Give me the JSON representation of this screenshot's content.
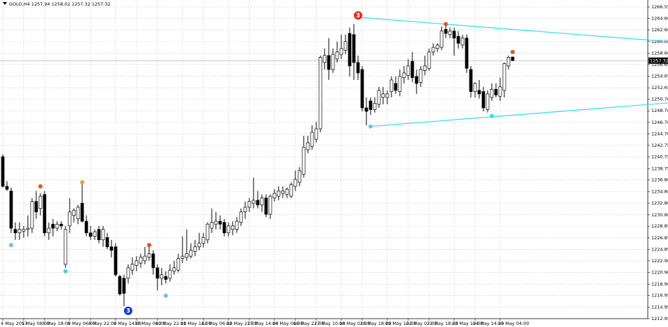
{
  "chart_data": {
    "type": "candlestick",
    "title": "GOLD,H4  1257.94 1258.02 1257.32 1257.32",
    "current_price": 1257.32,
    "ylim": [
      1212.95,
      1267.75
    ],
    "yticks": [
      1266.55,
      {
        "value": 1264.6,
        "label": "1264.60"
      },
      {
        "value": 1262.6,
        "label": "1262.60"
      },
      {
        "value": 1260.6,
        "label": "1260.60"
      },
      {
        "value": 1258.6,
        "label": "1258.60"
      },
      1256.65,
      1254.65,
      1252.65,
      {
        "value": 1250.7,
        "label": "1250.70"
      },
      {
        "value": 1248.7,
        "label": "1248.70"
      },
      {
        "value": 1246.7,
        "label": "1246.70"
      },
      {
        "value": 1244.7,
        "label": "1244.70"
      },
      1242.75,
      1240.75,
      1238.75,
      {
        "value": 1236.8,
        "label": "1236.80"
      },
      {
        "value": 1234.8,
        "label": "1234.80"
      },
      {
        "value": 1232.8,
        "label": "1232.80"
      },
      {
        "value": 1230.8,
        "label": "1230.80"
      },
      1228.85,
      1226.85,
      1224.85,
      {
        "value": 1222.9,
        "label": "1222.90"
      },
      {
        "value": 1220.9,
        "label": "1220.90"
      },
      {
        "value": 1218.9,
        "label": "1218.90"
      },
      1216.95,
      1214.95,
      1212.95
    ],
    "grid": true,
    "bull_color": "#ffffff",
    "bear_color": "#000000",
    "categories": [
      "4 May 2017",
      null,
      null,
      null,
      null,
      "5 May 08:00",
      null,
      null,
      null,
      null,
      "5 May 18:00",
      null,
      null,
      null,
      null,
      null,
      "8 May 06:00",
      null,
      null,
      null,
      null,
      "8 May 22:00",
      null,
      null,
      null,
      null,
      null,
      "9 May 14:00",
      null,
      null,
      null,
      null,
      "10 May 06:00",
      null,
      null,
      null,
      null,
      "10 May 22:00",
      null,
      null,
      null,
      null,
      null,
      "11 May 14:00",
      null,
      null,
      null,
      null,
      "12 May 06:00",
      null,
      null,
      null,
      null,
      null,
      "12 May 22:00",
      null,
      null,
      null,
      null,
      "15 May 14:00",
      null,
      null,
      null,
      null,
      null,
      "16 May 06:00",
      null,
      null,
      null,
      null,
      "16 May 22:00",
      null,
      null,
      null,
      null,
      "17 May 10:00",
      null,
      null,
      null,
      null,
      null,
      "18 May 02:00",
      null,
      null,
      null,
      null,
      "18 May 18:00",
      null,
      null,
      null,
      null,
      null,
      "19 May 10:00",
      null,
      null,
      null,
      null,
      "22 May 02:00",
      null,
      null,
      null,
      null,
      "22 May 18:00",
      null,
      null,
      null,
      null,
      null,
      "23 May 10:00",
      null,
      null,
      null,
      null,
      "24 May 14:00",
      null,
      null,
      null,
      null,
      null,
      "25 May 04:00",
      null,
      null,
      null
    ],
    "candles": [
      [
        1240.8,
        1241.2,
        1235.5,
        1235.7
      ],
      [
        1235.7,
        1236.6,
        1234.9,
        1235.2
      ],
      [
        1234.9,
        1235.5,
        1227.7,
        1228.5
      ],
      [
        1228.3,
        1229.5,
        1226.5,
        1227.7
      ],
      [
        1227.7,
        1229.5,
        1226.5,
        1228.3
      ],
      [
        1228.0,
        1228.9,
        1226.9,
        1228.3
      ],
      [
        1228.3,
        1230.7,
        1227.1,
        1228.5
      ],
      [
        1228.5,
        1233.7,
        1227.7,
        1233.1
      ],
      [
        1233.1,
        1234.9,
        1230.1,
        1231.3
      ],
      [
        1231.9,
        1234.5,
        1230.7,
        1234.0
      ],
      [
        1234.3,
        1234.9,
        1227.1,
        1227.7
      ],
      [
        1227.7,
        1229.5,
        1226.5,
        1228.5
      ],
      [
        1229.2,
        1230.1,
        1227.1,
        1228.5
      ],
      [
        1228.5,
        1229.7,
        1228.0,
        1229.2
      ],
      [
        1229.2,
        1229.7,
        1228.3,
        1228.9
      ],
      [
        1222.3,
        1228.9,
        1221.7,
        1228.3
      ],
      [
        1228.9,
        1233.7,
        1227.7,
        1231.3
      ],
      [
        1230.7,
        1231.9,
        1229.5,
        1231.6
      ],
      [
        1230.1,
        1232.5,
        1229.2,
        1232.1
      ],
      [
        1232.8,
        1236.4,
        1229.5,
        1229.7
      ],
      [
        1229.7,
        1230.7,
        1227.1,
        1227.7
      ],
      [
        1227.7,
        1228.9,
        1226.5,
        1227.1
      ],
      [
        1227.1,
        1228.3,
        1226.5,
        1227.9
      ],
      [
        1228.3,
        1228.9,
        1225.9,
        1226.5
      ],
      [
        1226.5,
        1228.9,
        1225.3,
        1228.3
      ],
      [
        1226.9,
        1227.7,
        1224.9,
        1225.3
      ],
      [
        1225.3,
        1226.5,
        1223.5,
        1224.7
      ],
      [
        1225.3,
        1225.9,
        1220.2,
        1220.5
      ],
      [
        1220.2,
        1220.5,
        1216.9,
        1217.2
      ],
      [
        1219.9,
        1220.5,
        1215.1,
        1217.3
      ],
      [
        1219.9,
        1222.3,
        1219.0,
        1221.7
      ],
      [
        1221.3,
        1223.5,
        1220.5,
        1222.3
      ],
      [
        1222.1,
        1223.7,
        1221.1,
        1222.9
      ],
      [
        1222.5,
        1224.1,
        1221.7,
        1223.5
      ],
      [
        1222.9,
        1225.3,
        1222.3,
        1223.7
      ],
      [
        1223.5,
        1225.9,
        1222.9,
        1224.1
      ],
      [
        1224.1,
        1224.7,
        1220.5,
        1221.7
      ],
      [
        1221.7,
        1222.3,
        1217.8,
        1219.9
      ],
      [
        1219.9,
        1221.7,
        1218.7,
        1220.5
      ],
      [
        1220.2,
        1221.1,
        1219.0,
        1219.7
      ],
      [
        1219.9,
        1222.3,
        1219.3,
        1221.3
      ],
      [
        1221.1,
        1222.9,
        1220.5,
        1221.7
      ],
      [
        1221.3,
        1224.1,
        1220.9,
        1223.3
      ],
      [
        1223.3,
        1227.1,
        1222.5,
        1223.7
      ],
      [
        1223.5,
        1228.3,
        1222.9,
        1224.1
      ],
      [
        1223.7,
        1225.9,
        1223.3,
        1224.7
      ],
      [
        1224.5,
        1226.5,
        1223.7,
        1225.3
      ],
      [
        1225.3,
        1227.7,
        1224.7,
        1225.9
      ],
      [
        1225.9,
        1227.7,
        1225.2,
        1226.9
      ],
      [
        1226.5,
        1229.5,
        1225.9,
        1229.2
      ],
      [
        1228.5,
        1231.9,
        1227.7,
        1229.5
      ],
      [
        1229.2,
        1231.3,
        1228.3,
        1229.7
      ],
      [
        1229.7,
        1230.7,
        1228.3,
        1229.2
      ],
      [
        1229.5,
        1230.1,
        1227.1,
        1227.7
      ],
      [
        1227.7,
        1229.5,
        1227.1,
        1228.9
      ],
      [
        1228.3,
        1229.7,
        1227.3,
        1228.9
      ],
      [
        1228.3,
        1230.4,
        1227.7,
        1229.7
      ],
      [
        1229.5,
        1231.9,
        1228.9,
        1231.3
      ],
      [
        1231.3,
        1233.1,
        1230.1,
        1232.1
      ],
      [
        1232.1,
        1233.7,
        1231.3,
        1233.1
      ],
      [
        1232.8,
        1237.2,
        1231.9,
        1233.3
      ],
      [
        1233.3,
        1234.9,
        1231.9,
        1232.5
      ],
      [
        1232.5,
        1234.3,
        1231.3,
        1233.7
      ],
      [
        1233.7,
        1234.3,
        1230.4,
        1230.9
      ],
      [
        1230.9,
        1234.3,
        1230.1,
        1234.0
      ],
      [
        1233.7,
        1235.2,
        1233.1,
        1234.5
      ],
      [
        1234.0,
        1235.7,
        1233.3,
        1234.9
      ],
      [
        1234.5,
        1235.7,
        1233.7,
        1234.9
      ],
      [
        1234.3,
        1235.5,
        1233.7,
        1235.2
      ],
      [
        1234.0,
        1236.4,
        1233.7,
        1236.0
      ],
      [
        1235.7,
        1238.4,
        1234.9,
        1236.9
      ],
      [
        1236.4,
        1239.0,
        1235.7,
        1238.4
      ],
      [
        1237.8,
        1244.4,
        1237.2,
        1242.4
      ],
      [
        1242.0,
        1244.4,
        1241.4,
        1243.2
      ],
      [
        1242.6,
        1246.2,
        1242.0,
        1245.0
      ],
      [
        1243.8,
        1246.8,
        1243.2,
        1245.6
      ],
      [
        1245.6,
        1258.2,
        1245.0,
        1257.9
      ],
      [
        1257.0,
        1259.4,
        1255.8,
        1258.2
      ],
      [
        1258.2,
        1261.2,
        1254.0,
        1255.8
      ],
      [
        1255.8,
        1259.4,
        1255.2,
        1258.4
      ],
      [
        1257.6,
        1260.6,
        1257.0,
        1258.8
      ],
      [
        1258.4,
        1261.8,
        1257.6,
        1259.4
      ],
      [
        1259.1,
        1261.8,
        1258.4,
        1260.6
      ],
      [
        1262.0,
        1263.0,
        1254.6,
        1256.4
      ],
      [
        1261.8,
        1263.6,
        1254.0,
        1257.0
      ],
      [
        1257.0,
        1258.2,
        1254.0,
        1255.2
      ],
      [
        1255.8,
        1256.4,
        1248.6,
        1249.2
      ],
      [
        1249.2,
        1251.0,
        1246.2,
        1248.6
      ],
      [
        1250.4,
        1251.0,
        1248.0,
        1248.9
      ],
      [
        1248.9,
        1251.0,
        1248.4,
        1250.0
      ],
      [
        1249.8,
        1252.8,
        1249.2,
        1252.2
      ],
      [
        1251.0,
        1252.8,
        1249.8,
        1251.6
      ],
      [
        1251.0,
        1252.2,
        1249.8,
        1251.6
      ],
      [
        1252.0,
        1254.6,
        1251.0,
        1254.0
      ],
      [
        1253.4,
        1254.6,
        1251.6,
        1252.2
      ],
      [
        1252.0,
        1255.8,
        1251.2,
        1254.6
      ],
      [
        1254.4,
        1256.4,
        1253.4,
        1255.2
      ],
      [
        1254.8,
        1257.6,
        1254.0,
        1256.4
      ],
      [
        1257.2,
        1258.8,
        1253.6,
        1254.4
      ],
      [
        1254.6,
        1255.8,
        1251.6,
        1253.4
      ],
      [
        1253.6,
        1256.4,
        1252.8,
        1255.8
      ],
      [
        1255.6,
        1258.2,
        1254.8,
        1256.4
      ],
      [
        1256.0,
        1259.4,
        1255.6,
        1258.8
      ],
      [
        1258.8,
        1260.3,
        1258.2,
        1259.6
      ],
      [
        1259.4,
        1260.3,
        1258.8,
        1260.0
      ],
      [
        1259.6,
        1263.2,
        1259.1,
        1262.4
      ],
      [
        1262.7,
        1263.6,
        1261.2,
        1262.0
      ],
      [
        1261.8,
        1263.0,
        1261.2,
        1262.4
      ],
      [
        1262.4,
        1263.0,
        1258.2,
        1261.2
      ],
      [
        1261.5,
        1262.4,
        1259.4,
        1260.3
      ],
      [
        1260.0,
        1261.8,
        1259.4,
        1261.2
      ],
      [
        1261.2,
        1261.8,
        1255.2,
        1256.0
      ],
      [
        1255.8,
        1256.4,
        1251.0,
        1252.0
      ],
      [
        1252.0,
        1253.6,
        1251.0,
        1253.4
      ],
      [
        1252.2,
        1254.0,
        1250.8,
        1251.6
      ],
      [
        1252.0,
        1252.8,
        1248.6,
        1249.2
      ],
      [
        1248.9,
        1252.2,
        1248.4,
        1251.6
      ],
      [
        1251.0,
        1253.4,
        1250.4,
        1252.4
      ],
      [
        1252.4,
        1253.4,
        1251.0,
        1251.4
      ],
      [
        1251.2,
        1254.4,
        1250.4,
        1252.8
      ],
      [
        1252.2,
        1257.0,
        1251.0,
        1256.8
      ],
      [
        1256.4,
        1258.2,
        1255.8,
        1257.9
      ],
      [
        1257.94,
        1258.02,
        1257.32,
        1257.32
      ]
    ],
    "trendlines": [
      {
        "color": "#2de0e8",
        "x": [
          84.5,
          159.2
        ],
        "values": [
          1264.8,
          1260.6
        ]
      },
      {
        "color": "#2de0e8",
        "x": [
          87.7,
          159.2
        ],
        "values": [
          1246.0,
          1250.05
        ]
      }
    ],
    "markers": [
      {
        "index": 85,
        "price": 1265.1,
        "color": "#e8261c",
        "label": "3"
      },
      {
        "index": 30,
        "price": 1214.3,
        "color": "#1030e0",
        "label": "3"
      },
      {
        "index": 9,
        "price": 1235.7,
        "color": "#e8501c"
      },
      {
        "index": 19,
        "price": 1236.4,
        "color": "#f0a020"
      },
      {
        "index": 35,
        "price": 1225.6,
        "color": "#e8501c"
      },
      {
        "index": 106,
        "price": 1263.6,
        "color": "#e8501c"
      },
      {
        "index": 122,
        "price": 1258.8,
        "color": "#e8501c"
      },
      {
        "index": 2,
        "price": 1225.6,
        "color": "#7ab8e8"
      },
      {
        "index": 15,
        "price": 1221.1,
        "color": "#2de0e8"
      },
      {
        "index": 39,
        "price": 1216.9,
        "color": "#7ab8e8"
      },
      {
        "index": 88,
        "price": 1246.0,
        "color": "#7ab8e8"
      },
      {
        "index": 117,
        "price": 1247.8,
        "color": "#2de0e8"
      }
    ]
  }
}
